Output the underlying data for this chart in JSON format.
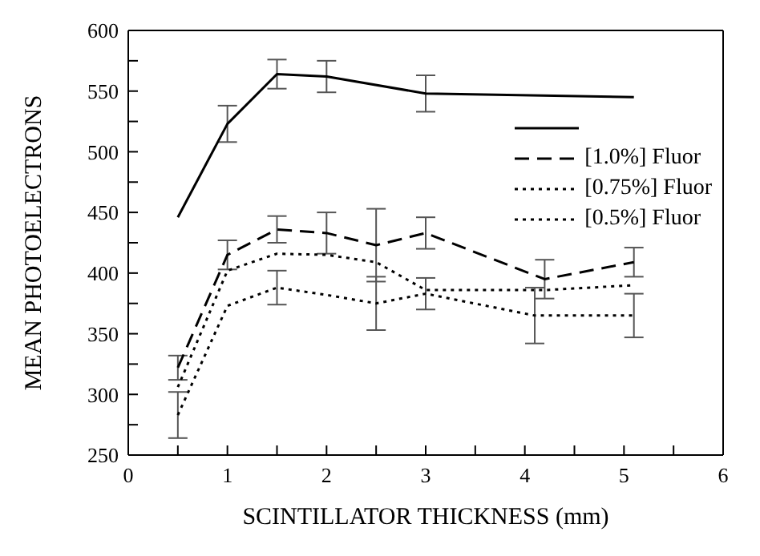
{
  "chart_data": {
    "type": "line",
    "xlabel": "SCINTILLATOR THICKNESS (mm)",
    "ylabel": "MEAN PHOTOELECTRONS",
    "xlim": [
      0,
      6
    ],
    "ylim": [
      250,
      600
    ],
    "xticks": [
      0,
      {
        "value": 0.5,
        "label": null
      },
      1,
      {
        "value": 1.5,
        "label": null
      },
      2,
      {
        "value": 2.5,
        "label": null
      },
      3,
      {
        "value": 3.5,
        "label": null
      },
      4,
      {
        "value": 4.5,
        "label": null
      },
      5,
      {
        "value": 5.5,
        "label": null
      },
      6
    ],
    "yticks": [
      250,
      {
        "value": 275,
        "label": null
      },
      300,
      {
        "value": 325,
        "label": null
      },
      350,
      {
        "value": 375,
        "label": null
      },
      400,
      {
        "value": 425,
        "label": null
      },
      450,
      {
        "value": 475,
        "label": null
      },
      500,
      {
        "value": 525,
        "label": null
      },
      550,
      {
        "value": 575,
        "label": null
      },
      600
    ],
    "grid": false,
    "legend": "right",
    "marker": "none",
    "series": [
      {
        "color": "#000000",
        "line_style": "solid",
        "x": [
          0.5,
          1,
          1.5,
          2,
          3,
          5.1
        ],
        "values": [
          446,
          523,
          564,
          562,
          548,
          545
        ],
        "errors": [
          null,
          15,
          12,
          13,
          15,
          null
        ]
      },
      {
        "name": "[1.0%] Fluor",
        "color": "#000000",
        "line_style": "dashed",
        "x": [
          0.5,
          1,
          1.5,
          2,
          2.5,
          3,
          4.2,
          5.1
        ],
        "values": [
          322,
          415,
          436,
          433,
          423,
          433,
          395,
          409
        ],
        "errors": [
          10,
          12,
          11,
          17,
          30,
          13,
          16,
          12
        ]
      },
      {
        "name": "[0.75%] Fluor",
        "color": "#000000",
        "line_style": "dotted",
        "x": [
          0.5,
          1,
          1.5,
          2,
          2.5,
          3,
          4.2,
          5.1
        ],
        "values": [
          306,
          402,
          416,
          415,
          409,
          386,
          386,
          390
        ]
      },
      {
        "name": "[0.5%] Fluor",
        "color": "#000000",
        "line_style": "dotted",
        "x": [
          0.5,
          1,
          1.5,
          2,
          2.5,
          3,
          4.1,
          5.1
        ],
        "values": [
          283,
          373,
          388,
          382,
          375,
          383,
          365,
          365
        ],
        "errors": [
          19,
          null,
          14,
          null,
          22,
          13,
          23,
          18
        ]
      }
    ]
  }
}
